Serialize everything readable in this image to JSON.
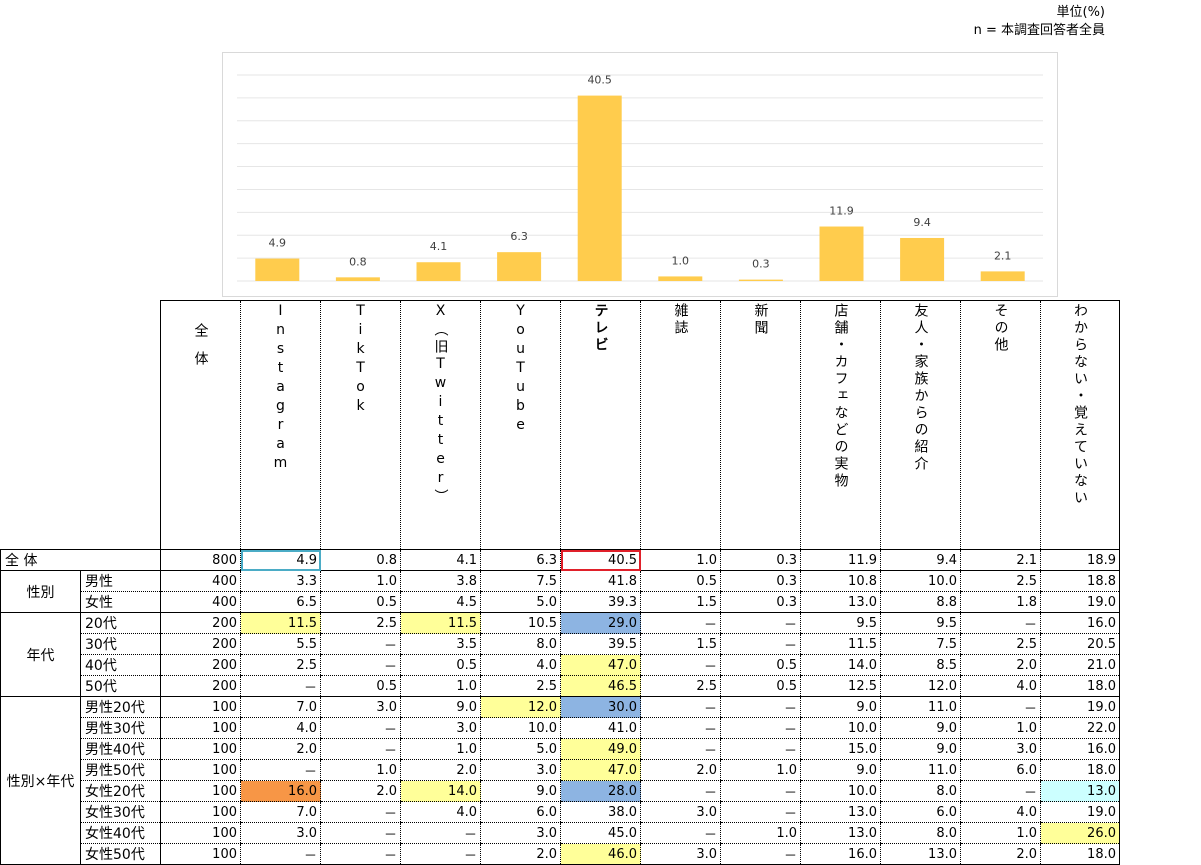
{
  "unit_label": "単位(%)",
  "n_label": "n = 本調査回答者全員",
  "colors": {
    "bar": "#ffcc4d",
    "grid": "#e6e6e6",
    "yellow": "#ffff99",
    "blue": "#8db4e2",
    "orange": "#f79646",
    "cyan": "#ccffff"
  },
  "chart_data": {
    "type": "bar",
    "categories": [
      "Instagram",
      "TikTok",
      "X（旧Twitter）",
      "YouTube",
      "テレビ",
      "雑誌",
      "新聞",
      "店舗・カフェなどの実物",
      "友人・家族からの紹介",
      "その他"
    ],
    "values": [
      4.9,
      0.8,
      4.1,
      6.3,
      40.5,
      1.0,
      0.3,
      11.9,
      9.4,
      2.1
    ],
    "value_labels": [
      "4.9",
      "0.8",
      "4.1",
      "6.3",
      "40.5",
      "1.0",
      "0.3",
      "11.9",
      "9.4",
      "2.1"
    ],
    "ylim": [
      0,
      45
    ],
    "grid": true
  },
  "table": {
    "total_header": "全体",
    "columns": [
      "Instagram",
      "TikTok",
      "X（旧Twitter）",
      "YouTube",
      "テレビ",
      "雑誌",
      "新聞",
      "店舗・カフェなどの実物",
      "友人・家族からの紹介",
      "その他",
      "わからない・覚えていない"
    ],
    "total_row": {
      "label": "全 体",
      "n": "800",
      "values": [
        "4.9",
        "0.8",
        "4.1",
        "6.3",
        "40.5",
        "1.0",
        "0.3",
        "11.9",
        "9.4",
        "2.1",
        "18.9"
      ]
    },
    "groups": [
      {
        "label": "性別",
        "rows": [
          {
            "label": "男性",
            "n": "400",
            "values": [
              "3.3",
              "1.0",
              "3.8",
              "7.5",
              "41.8",
              "0.5",
              "0.3",
              "10.8",
              "10.0",
              "2.5",
              "18.8"
            ]
          },
          {
            "label": "女性",
            "n": "400",
            "values": [
              "6.5",
              "0.5",
              "4.5",
              "5.0",
              "39.3",
              "1.5",
              "0.3",
              "13.0",
              "8.8",
              "1.8",
              "19.0"
            ]
          }
        ]
      },
      {
        "label": "年代",
        "rows": [
          {
            "label": "20代",
            "n": "200",
            "values": [
              "11.5",
              "2.5",
              "11.5",
              "10.5",
              "29.0",
              "－",
              "－",
              "9.5",
              "9.5",
              "－",
              "16.0"
            ]
          },
          {
            "label": "30代",
            "n": "200",
            "values": [
              "5.5",
              "－",
              "3.5",
              "8.0",
              "39.5",
              "1.5",
              "－",
              "11.5",
              "7.5",
              "2.5",
              "20.5"
            ]
          },
          {
            "label": "40代",
            "n": "200",
            "values": [
              "2.5",
              "－",
              "0.5",
              "4.0",
              "47.0",
              "－",
              "0.5",
              "14.0",
              "8.5",
              "2.0",
              "21.0"
            ]
          },
          {
            "label": "50代",
            "n": "200",
            "values": [
              "－",
              "0.5",
              "1.0",
              "2.5",
              "46.5",
              "2.5",
              "0.5",
              "12.5",
              "12.0",
              "4.0",
              "18.0"
            ]
          }
        ]
      },
      {
        "label": "性別×年代",
        "rows": [
          {
            "label": "男性20代",
            "n": "100",
            "values": [
              "7.0",
              "3.0",
              "9.0",
              "12.0",
              "30.0",
              "－",
              "－",
              "9.0",
              "11.0",
              "－",
              "19.0"
            ]
          },
          {
            "label": "男性30代",
            "n": "100",
            "values": [
              "4.0",
              "－",
              "3.0",
              "10.0",
              "41.0",
              "－",
              "－",
              "10.0",
              "9.0",
              "1.0",
              "22.0"
            ]
          },
          {
            "label": "男性40代",
            "n": "100",
            "values": [
              "2.0",
              "－",
              "1.0",
              "5.0",
              "49.0",
              "－",
              "－",
              "15.0",
              "9.0",
              "3.0",
              "16.0"
            ]
          },
          {
            "label": "男性50代",
            "n": "100",
            "values": [
              "－",
              "1.0",
              "2.0",
              "3.0",
              "47.0",
              "2.0",
              "1.0",
              "9.0",
              "11.0",
              "6.0",
              "18.0"
            ]
          },
          {
            "label": "女性20代",
            "n": "100",
            "values": [
              "16.0",
              "2.0",
              "14.0",
              "9.0",
              "28.0",
              "－",
              "－",
              "10.0",
              "8.0",
              "－",
              "13.0"
            ]
          },
          {
            "label": "女性30代",
            "n": "100",
            "values": [
              "7.0",
              "－",
              "4.0",
              "6.0",
              "38.0",
              "3.0",
              "－",
              "13.0",
              "6.0",
              "4.0",
              "19.0"
            ]
          },
          {
            "label": "女性40代",
            "n": "100",
            "values": [
              "3.0",
              "－",
              "－",
              "3.0",
              "45.0",
              "－",
              "1.0",
              "13.0",
              "8.0",
              "1.0",
              "26.0"
            ]
          },
          {
            "label": "女性50代",
            "n": "100",
            "values": [
              "－",
              "－",
              "－",
              "2.0",
              "46.0",
              "3.0",
              "－",
              "16.0",
              "13.0",
              "2.0",
              "18.0"
            ]
          }
        ]
      }
    ]
  }
}
